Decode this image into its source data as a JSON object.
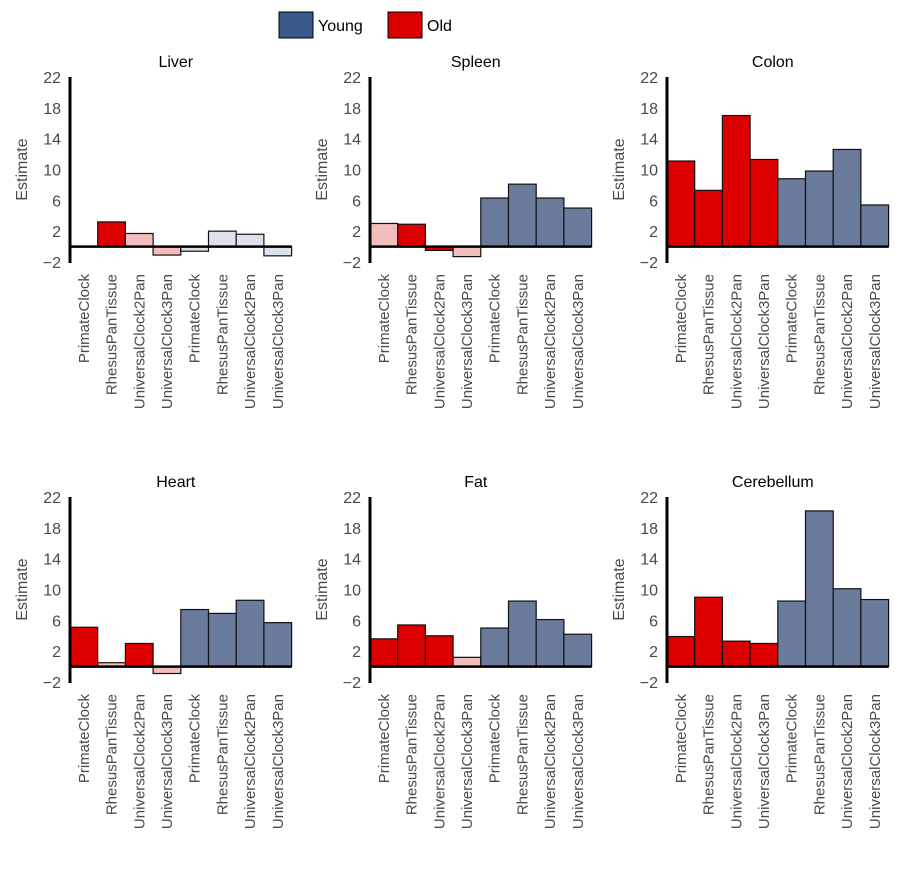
{
  "legend": {
    "items": [
      {
        "label": "Young",
        "color": "#3a5a8c"
      },
      {
        "label": "Old",
        "color": "#dd0000"
      }
    ]
  },
  "colors": {
    "old": "#dd0000",
    "old_faded": "#f2bdbd",
    "young": "#6a7b9c",
    "young_faded": "#dde2ea"
  },
  "chart_data": [
    {
      "type": "bar",
      "title": "Liver",
      "ylabel": "Estimate",
      "ylim": [
        -2,
        22
      ],
      "yticks": [
        -2,
        2,
        6,
        10,
        14,
        18,
        22
      ],
      "categories": [
        "PrimateClock",
        "RhesusPanTissue",
        "UniversalClock2Pan",
        "UniversalClock3Pan",
        "PrimateClock",
        "RhesusPanTissue",
        "UniversalClock2Pan",
        "UniversalClock3Pan"
      ],
      "values": [
        0,
        3.2,
        1.7,
        -1.1,
        -0.6,
        2.0,
        1.6,
        -1.2
      ],
      "groups": [
        "old",
        "old",
        "old",
        "old",
        "young",
        "young",
        "young",
        "young"
      ],
      "faded": [
        false,
        false,
        true,
        true,
        true,
        true,
        true,
        true
      ]
    },
    {
      "type": "bar",
      "title": "Spleen",
      "ylabel": "Estimate",
      "ylim": [
        -2,
        22
      ],
      "yticks": [
        -2,
        2,
        6,
        10,
        14,
        18,
        22
      ],
      "categories": [
        "PrimateClock",
        "RhesusPanTissue",
        "UniversalClock2Pan",
        "UniversalClock3Pan",
        "PrimateClock",
        "RhesusPanTissue",
        "UniversalClock2Pan",
        "UniversalClock3Pan"
      ],
      "values": [
        3.0,
        2.9,
        -0.5,
        -1.3,
        6.3,
        8.1,
        6.3,
        5.0
      ],
      "groups": [
        "old",
        "old",
        "old",
        "old",
        "young",
        "young",
        "young",
        "young"
      ],
      "faded": [
        true,
        false,
        false,
        true,
        false,
        false,
        false,
        false
      ]
    },
    {
      "type": "bar",
      "title": "Colon",
      "ylabel": "Estimate",
      "ylim": [
        -2,
        22
      ],
      "yticks": [
        -2,
        2,
        6,
        10,
        14,
        18,
        22
      ],
      "categories": [
        "PrimateClock",
        "RhesusPanTissue",
        "UniversalClock2Pan",
        "UniversalClock3Pan",
        "PrimateClock",
        "RhesusPanTissue",
        "UniversalClock2Pan",
        "UniversalClock3Pan"
      ],
      "values": [
        11.1,
        7.3,
        17.0,
        11.3,
        8.8,
        9.8,
        12.6,
        5.4
      ],
      "groups": [
        "old",
        "old",
        "old",
        "old",
        "young",
        "young",
        "young",
        "young"
      ],
      "faded": [
        false,
        false,
        false,
        false,
        false,
        false,
        false,
        false
      ]
    },
    {
      "type": "bar",
      "title": "Heart",
      "ylabel": "Estimate",
      "ylim": [
        -2,
        22
      ],
      "yticks": [
        -2,
        2,
        6,
        10,
        14,
        18,
        22
      ],
      "categories": [
        "PrimateClock",
        "RhesusPanTissue",
        "UniversalClock2Pan",
        "UniversalClock3Pan",
        "PrimateClock",
        "RhesusPanTissue",
        "UniversalClock2Pan",
        "UniversalClock3Pan"
      ],
      "values": [
        5.1,
        0.5,
        3.0,
        -0.9,
        7.4,
        6.9,
        8.6,
        5.7
      ],
      "groups": [
        "old",
        "old",
        "old",
        "old",
        "young",
        "young",
        "young",
        "young"
      ],
      "faded": [
        false,
        true,
        false,
        true,
        false,
        false,
        false,
        false
      ]
    },
    {
      "type": "bar",
      "title": "Fat",
      "ylabel": "Estimate",
      "ylim": [
        -2,
        22
      ],
      "yticks": [
        -2,
        2,
        6,
        10,
        14,
        18,
        22
      ],
      "categories": [
        "PrimateClock",
        "RhesusPanTissue",
        "UniversalClock2Pan",
        "UniversalClock3Pan",
        "PrimateClock",
        "RhesusPanTissue",
        "UniversalClock2Pan",
        "UniversalClock3Pan"
      ],
      "values": [
        3.6,
        5.4,
        4.0,
        1.2,
        5.0,
        8.5,
        6.1,
        4.2
      ],
      "groups": [
        "old",
        "old",
        "old",
        "old",
        "young",
        "young",
        "young",
        "young"
      ],
      "faded": [
        false,
        false,
        false,
        true,
        false,
        false,
        false,
        false
      ]
    },
    {
      "type": "bar",
      "title": "Cerebellum",
      "ylabel": "Estimate",
      "ylim": [
        -2,
        22
      ],
      "yticks": [
        -2,
        2,
        6,
        10,
        14,
        18,
        22
      ],
      "categories": [
        "PrimateClock",
        "RhesusPanTissue",
        "UniversalClock2Pan",
        "UniversalClock3Pan",
        "PrimateClock",
        "RhesusPanTissue",
        "UniversalClock2Pan",
        "UniversalClock3Pan"
      ],
      "values": [
        3.9,
        9.0,
        3.3,
        3.0,
        8.5,
        20.2,
        10.1,
        8.7
      ],
      "groups": [
        "old",
        "old",
        "old",
        "old",
        "young",
        "young",
        "young",
        "young"
      ],
      "faded": [
        false,
        false,
        false,
        false,
        false,
        false,
        false,
        false
      ]
    }
  ]
}
